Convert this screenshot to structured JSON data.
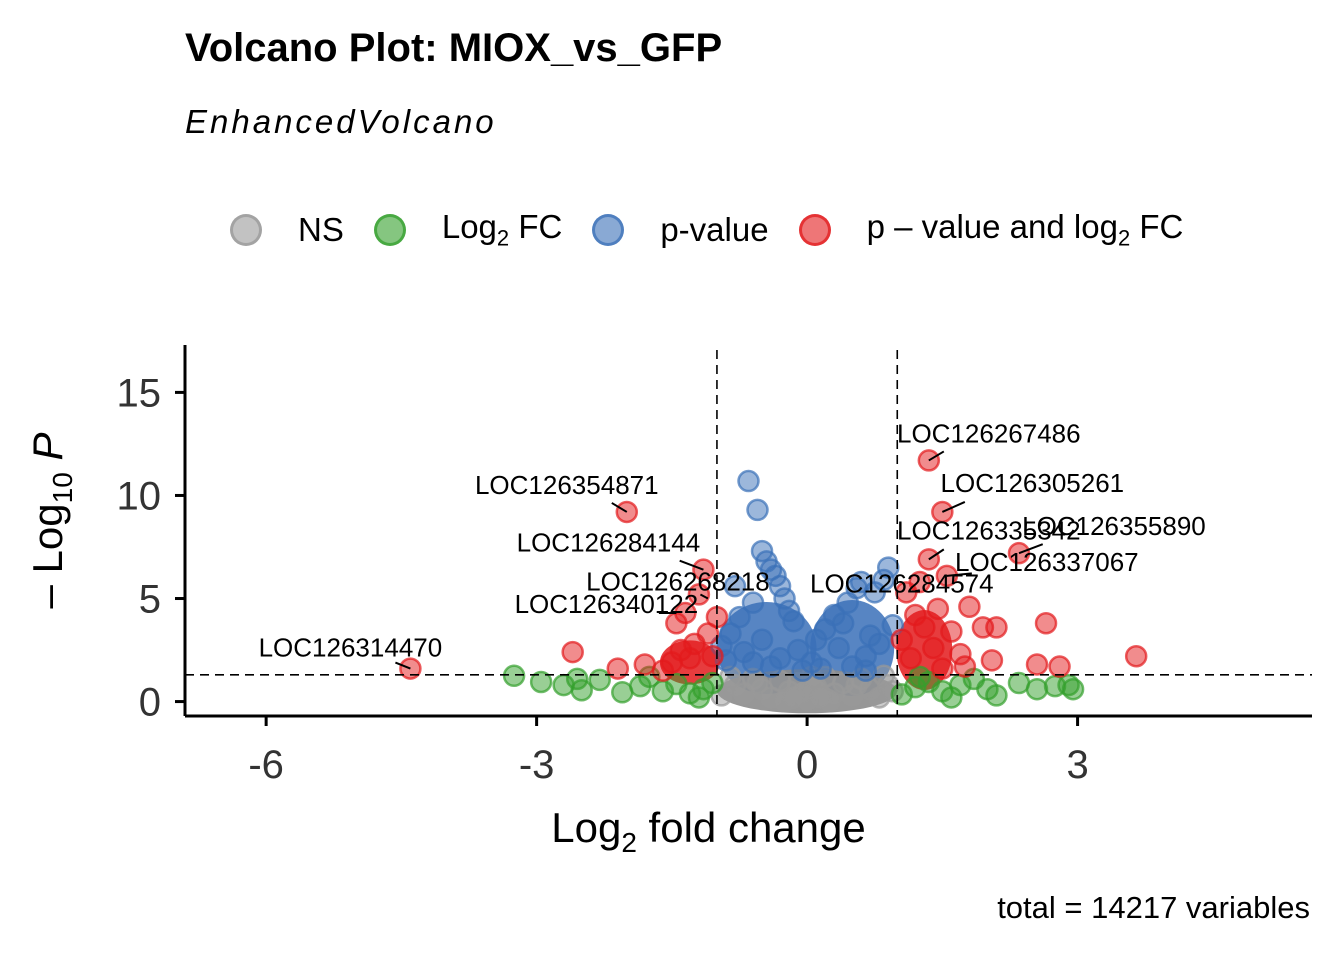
{
  "chart_data": {
    "type": "scatter",
    "title": "Volcano Plot: MIOX_vs_GFP",
    "subtitle": "EnhancedVolcano",
    "caption": "total = 14217 variables",
    "xlabel": {
      "prefix": "Log",
      "sub": "2",
      "suffix": " fold change"
    },
    "ylabel": {
      "prefix": "– Log",
      "sub": "10",
      "suffix": " P"
    },
    "xlim": [
      -6.9,
      5.6
    ],
    "ylim": [
      -0.7,
      17.3
    ],
    "x_ticks": [
      -6,
      -3,
      0,
      3
    ],
    "x_tick_labels": [
      "-6",
      "-3",
      "0",
      "3"
    ],
    "y_ticks": [
      0,
      5,
      10,
      15
    ],
    "y_tick_labels": [
      "0",
      "5",
      "10",
      "15"
    ],
    "fc_cutoff": 1,
    "p_cutoff_neglog10": 1.3,
    "grid": false,
    "legend_position": "top",
    "legend": [
      {
        "key": "NS",
        "label": "NS",
        "color": "#999999"
      },
      {
        "key": "FC",
        "label_prefix": "Log",
        "label_sub": "2",
        "label_suffix": " FC",
        "color": "#33a02c"
      },
      {
        "key": "P",
        "label": "p-value",
        "color": "#3a70b8"
      },
      {
        "key": "FC_P",
        "label_prefix": "p – value and log",
        "label_sub": "2",
        "label_suffix": " FC",
        "color": "#e31a1c"
      }
    ],
    "series": [
      {
        "name": "NS",
        "points": [
          [
            -0.95,
            0.3
          ],
          [
            -0.8,
            0.8
          ],
          [
            -0.7,
            0.4
          ],
          [
            -0.6,
            1.1
          ],
          [
            -0.5,
            0.6
          ],
          [
            -0.4,
            0.2
          ],
          [
            -0.3,
            1.0
          ],
          [
            -0.2,
            0.5
          ],
          [
            -0.1,
            0.9
          ],
          [
            0.0,
            0.1
          ],
          [
            0.1,
            0.7
          ],
          [
            0.2,
            1.2
          ],
          [
            0.3,
            0.4
          ],
          [
            0.4,
            0.9
          ],
          [
            0.5,
            0.3
          ],
          [
            0.6,
            1.1
          ],
          [
            0.7,
            0.6
          ],
          [
            0.8,
            0.2
          ],
          [
            0.9,
            0.8
          ],
          [
            0.95,
            0.5
          ],
          [
            -0.85,
            1.2
          ],
          [
            0.85,
            1.25
          ],
          [
            -0.25,
            0.05
          ],
          [
            0.25,
            0.05
          ],
          [
            0.55,
            0.8
          ],
          [
            -0.55,
            0.9
          ],
          [
            0.05,
            1.2
          ],
          [
            -0.05,
            0.4
          ],
          [
            0.15,
            0.2
          ],
          [
            -0.15,
            0.2
          ]
        ]
      },
      {
        "name": "Log2 FC",
        "points": [
          [
            -3.25,
            1.25
          ],
          [
            -2.95,
            0.95
          ],
          [
            -2.7,
            0.8
          ],
          [
            -2.55,
            1.1
          ],
          [
            -2.5,
            0.55
          ],
          [
            -2.3,
            1.05
          ],
          [
            -2.05,
            0.45
          ],
          [
            -1.85,
            0.75
          ],
          [
            -1.6,
            0.5
          ],
          [
            -1.45,
            0.85
          ],
          [
            -1.3,
            0.4
          ],
          [
            -1.15,
            0.6
          ],
          [
            -1.05,
            0.9
          ],
          [
            1.05,
            0.35
          ],
          [
            1.2,
            0.7
          ],
          [
            1.35,
            0.95
          ],
          [
            1.5,
            0.5
          ],
          [
            1.7,
            0.8
          ],
          [
            1.85,
            1.1
          ],
          [
            2.0,
            0.6
          ],
          [
            2.1,
            0.3
          ],
          [
            2.35,
            0.9
          ],
          [
            2.55,
            0.6
          ],
          [
            2.75,
            0.75
          ],
          [
            2.9,
            0.8
          ],
          [
            2.95,
            0.6
          ],
          [
            1.6,
            0.2
          ],
          [
            1.25,
            1.2
          ],
          [
            -1.75,
            1.2
          ],
          [
            -1.2,
            0.2
          ]
        ]
      },
      {
        "name": "p-value",
        "points": [
          [
            -0.65,
            10.7
          ],
          [
            -0.55,
            9.3
          ],
          [
            -0.5,
            7.3
          ],
          [
            -0.45,
            6.8
          ],
          [
            -0.4,
            6.4
          ],
          [
            -0.35,
            6.1
          ],
          [
            -0.3,
            5.6
          ],
          [
            -0.25,
            5.0
          ],
          [
            -0.2,
            4.4
          ],
          [
            -0.15,
            3.9
          ],
          [
            -0.6,
            4.8
          ],
          [
            -0.75,
            4.1
          ],
          [
            -0.85,
            3.3
          ],
          [
            -0.95,
            2.7
          ],
          [
            -0.9,
            2.0
          ],
          [
            -0.7,
            2.4
          ],
          [
            -0.5,
            3.0
          ],
          [
            -0.3,
            2.1
          ],
          [
            -0.1,
            2.5
          ],
          [
            0.05,
            1.9
          ],
          [
            0.1,
            3.0
          ],
          [
            0.2,
            3.5
          ],
          [
            0.3,
            4.2
          ],
          [
            0.45,
            4.8
          ],
          [
            0.55,
            5.5
          ],
          [
            0.6,
            5.8
          ],
          [
            0.75,
            5.3
          ],
          [
            0.85,
            5.9
          ],
          [
            0.9,
            6.5
          ],
          [
            0.95,
            3.7
          ],
          [
            0.8,
            2.8
          ],
          [
            0.7,
            3.2
          ],
          [
            0.65,
            2.2
          ],
          [
            0.5,
            1.7
          ],
          [
            0.35,
            2.6
          ],
          [
            0.15,
            1.6
          ],
          [
            -0.05,
            1.5
          ],
          [
            -0.4,
            1.7
          ],
          [
            -0.6,
            1.9
          ],
          [
            0.65,
            1.5
          ],
          [
            -0.8,
            5.6
          ],
          [
            0.4,
            3.8
          ]
        ]
      },
      {
        "name": "p – value and log2 FC",
        "points": [
          [
            -4.4,
            1.6
          ],
          [
            -2.6,
            2.4
          ],
          [
            -2.1,
            1.6
          ],
          [
            -2.0,
            9.2
          ],
          [
            -1.8,
            1.8
          ],
          [
            -1.5,
            1.9
          ],
          [
            -1.45,
            3.8
          ],
          [
            -1.35,
            4.3
          ],
          [
            -1.3,
            2.1
          ],
          [
            -1.25,
            2.8
          ],
          [
            -1.2,
            5.2
          ],
          [
            -1.15,
            6.4
          ],
          [
            -1.1,
            3.3
          ],
          [
            -1.05,
            2.2
          ],
          [
            -1.0,
            4.1
          ],
          [
            -1.4,
            2.5
          ],
          [
            -1.6,
            1.5
          ],
          [
            1.05,
            3.0
          ],
          [
            1.1,
            5.3
          ],
          [
            1.15,
            2.1
          ],
          [
            1.2,
            4.2
          ],
          [
            1.25,
            5.8
          ],
          [
            1.3,
            3.6
          ],
          [
            1.35,
            6.9
          ],
          [
            1.35,
            11.7
          ],
          [
            1.4,
            2.6
          ],
          [
            1.45,
            4.5
          ],
          [
            1.5,
            9.2
          ],
          [
            1.55,
            6.1
          ],
          [
            1.6,
            3.4
          ],
          [
            1.7,
            2.3
          ],
          [
            1.8,
            4.6
          ],
          [
            1.95,
            3.6
          ],
          [
            2.05,
            2.0
          ],
          [
            2.1,
            3.6
          ],
          [
            2.35,
            7.2
          ],
          [
            2.55,
            1.8
          ],
          [
            2.65,
            3.8
          ],
          [
            2.8,
            1.7
          ],
          [
            3.65,
            2.2
          ],
          [
            1.5,
            1.6
          ],
          [
            1.75,
            1.7
          ]
        ]
      }
    ],
    "annotations": [
      {
        "label": "LOC126267486",
        "x": 1.35,
        "y": 11.7
      },
      {
        "label": "LOC126354871",
        "x": -2.0,
        "y": 9.2
      },
      {
        "label": "LOC126305261",
        "x": 1.5,
        "y": 9.2
      },
      {
        "label": "LOC126284144",
        "x": -1.15,
        "y": 6.4
      },
      {
        "label": "LOC126335342",
        "x": 1.35,
        "y": 6.9
      },
      {
        "label": "LOC126355890",
        "x": 2.35,
        "y": 7.2
      },
      {
        "label": "LOC126268218",
        "x": -1.1,
        "y": 5.0
      },
      {
        "label": "LOC126337067",
        "x": 1.55,
        "y": 6.1
      },
      {
        "label": "LOC126340122",
        "x": -1.45,
        "y": 4.3
      },
      {
        "label": "LOC126284574",
        "x": 1.25,
        "y": 5.4
      },
      {
        "label": "LOC126314470",
        "x": -4.4,
        "y": 1.6
      }
    ]
  }
}
